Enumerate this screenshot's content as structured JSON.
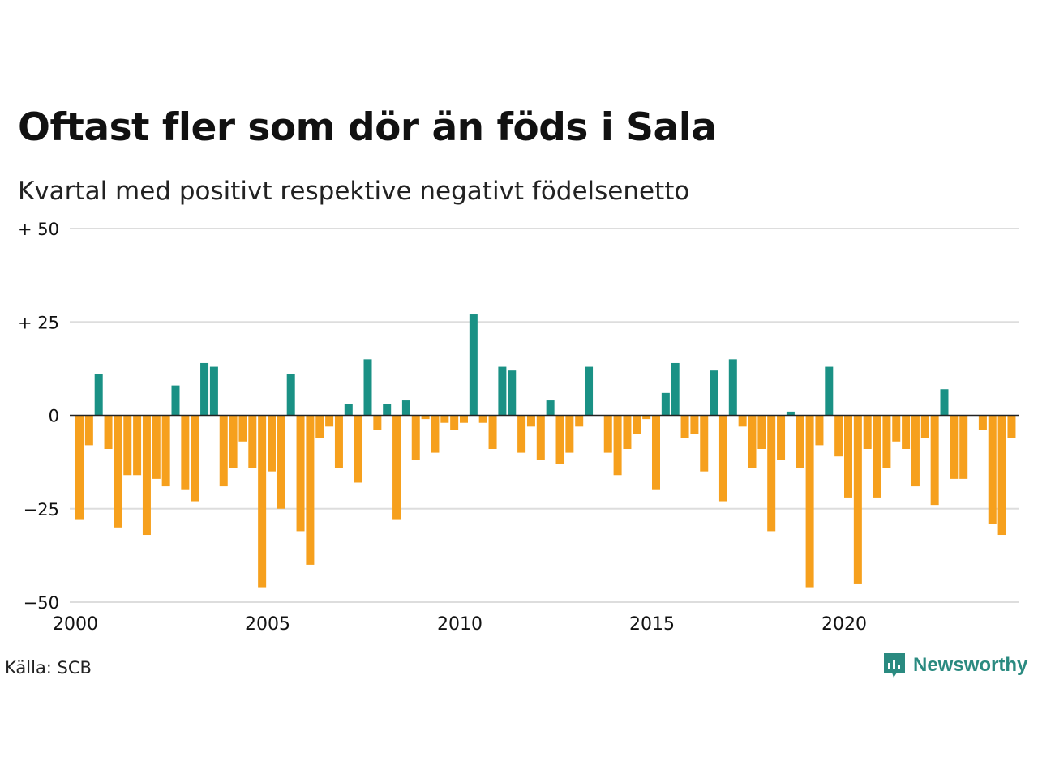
{
  "title": "Oftast fler som dör än föds i Sala",
  "subtitle": "Kvartal med positivt respektive negativt födelsenetto",
  "source": "Källa: SCB",
  "brand": "Newsworthy",
  "colors": {
    "positive": "#1a9185",
    "negative": "#f6a01d",
    "grid": "#dddddd",
    "zero": "#222222"
  },
  "chart_data": {
    "type": "bar",
    "ylim": [
      -50,
      50
    ],
    "yticks": [
      {
        "value": 50,
        "label": "+ 50"
      },
      {
        "value": 25,
        "label": "+ 25"
      },
      {
        "value": 0,
        "label": "0"
      },
      {
        "value": -25,
        "label": "−25"
      },
      {
        "value": -50,
        "label": "−50"
      }
    ],
    "xticks": [
      "2000",
      "2005",
      "2010",
      "2015",
      "2020"
    ],
    "start_year": 2000,
    "values": [
      -28,
      -8,
      11,
      -9,
      -30,
      -16,
      -16,
      -32,
      -17,
      -19,
      8,
      -20,
      -23,
      14,
      13,
      -19,
      -14,
      -7,
      -14,
      -46,
      -15,
      -25,
      11,
      -31,
      -40,
      -6,
      -3,
      -14,
      3,
      -18,
      15,
      -4,
      3,
      -28,
      4,
      -12,
      -1,
      -10,
      -2,
      -4,
      -2,
      27,
      -2,
      -9,
      13,
      12,
      -10,
      -3,
      -12,
      4,
      -13,
      -10,
      -3,
      13,
      0,
      -10,
      -16,
      -9,
      -5,
      -1,
      -20,
      6,
      14,
      -6,
      -5,
      -15,
      12,
      -23,
      15,
      -3,
      -14,
      -9,
      -31,
      -12,
      1,
      -14,
      -46,
      -8,
      13,
      -11,
      -22,
      -45,
      -9,
      -22,
      -14,
      -7,
      -9,
      -19,
      -6,
      -24,
      7,
      -17,
      -17,
      0,
      -4,
      -29,
      -32,
      -6
    ]
  }
}
